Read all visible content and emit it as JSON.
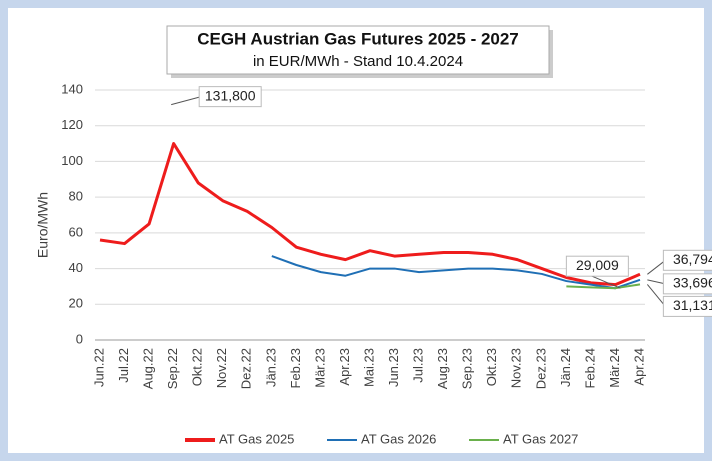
{
  "chart_data": {
    "type": "line",
    "title": "CEGH Austrian Gas Futures 2025 - 2027",
    "subtitle": "in EUR/MWh - Stand  10.4.2024",
    "y_label": "Euro/MWh",
    "categories": [
      "Jun.22",
      "Jul.22",
      "Aug.22",
      "Sep.22",
      "Okt.22",
      "Nov.22",
      "Dez.22",
      "Jän.23",
      "Feb.23",
      "Mär.23",
      "Apr.23",
      "Mai.23",
      "Jun.23",
      "Jul.23",
      "Aug.23",
      "Sep.23",
      "Okt.23",
      "Nov.23",
      "Dez.23",
      "Jän.24",
      "Feb.24",
      "Mär.24",
      "Apr.24"
    ],
    "series": [
      {
        "name": "AT Gas 2025",
        "color": "#ee1c1c",
        "values": [
          56,
          54,
          65,
          110,
          88,
          78,
          72,
          63,
          52,
          48,
          45,
          50,
          47,
          48,
          49,
          49,
          48,
          45,
          40,
          35,
          32,
          31,
          36.794
        ]
      },
      {
        "name": "AT Gas 2026",
        "color": "#1f6fb5",
        "values": [
          null,
          null,
          null,
          null,
          null,
          null,
          null,
          47,
          42,
          38,
          36,
          40,
          40,
          38,
          39,
          40,
          40,
          39,
          37,
          33,
          31,
          29,
          33.696
        ]
      },
      {
        "name": "AT Gas 2027",
        "color": "#6ab04c",
        "values": [
          null,
          null,
          null,
          null,
          null,
          null,
          null,
          null,
          null,
          null,
          null,
          null,
          null,
          null,
          null,
          null,
          null,
          null,
          null,
          30,
          29.5,
          29.009,
          31.131
        ]
      }
    ],
    "annotations": [
      {
        "value": 131.8,
        "label": "131,800"
      },
      {
        "value": 29.009,
        "label": "29,009"
      },
      {
        "value": 36.794,
        "label": "36,794"
      },
      {
        "value": 33.696,
        "label": "33,696"
      },
      {
        "value": 31.131,
        "label": "31,131"
      }
    ],
    "ylim": [
      0,
      140
    ],
    "yticks": [
      0,
      20,
      40,
      60,
      80,
      100,
      120,
      140
    ],
    "grid": true,
    "legend": "bottom"
  }
}
